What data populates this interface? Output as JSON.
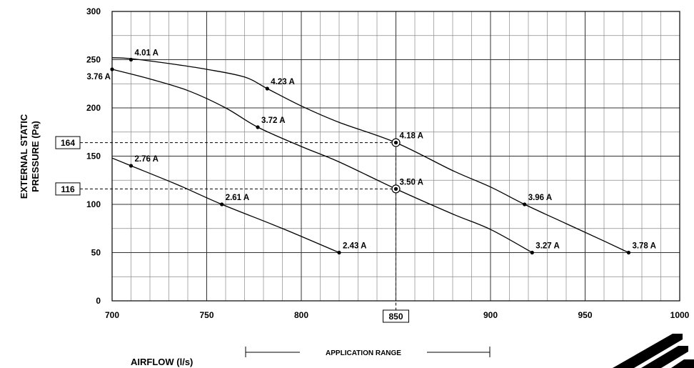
{
  "chart_data": {
    "type": "line",
    "xlabel": "AIRFLOW (l/s)",
    "ylabel_lines": [
      "EXTERNAL STATIC",
      "PRESSURE (Pa)"
    ],
    "xlim": [
      700,
      1000
    ],
    "ylim": [
      0,
      300
    ],
    "x_ticks": [
      700,
      750,
      800,
      850,
      900,
      950,
      1000
    ],
    "y_ticks": [
      0,
      50,
      100,
      150,
      200,
      250,
      300
    ],
    "x_minor_step": 10,
    "y_minor_step": 25,
    "grid": true,
    "series": [
      {
        "curve": [
          [
            700,
            252
          ],
          [
            710,
            251
          ],
          [
            730,
            246
          ],
          [
            750,
            240
          ],
          [
            770,
            232
          ],
          [
            782,
            220
          ],
          [
            800,
            202
          ],
          [
            820,
            185
          ],
          [
            850,
            164
          ],
          [
            880,
            135
          ],
          [
            900,
            118
          ],
          [
            918,
            100
          ],
          [
            940,
            80
          ],
          [
            960,
            62
          ],
          [
            973,
            50
          ]
        ],
        "points": [
          {
            "x": 710,
            "y": 250,
            "label": "4.01 A"
          },
          {
            "x": 782,
            "y": 220,
            "label": "4.23 A"
          },
          {
            "x": 850,
            "y": 164,
            "label": "4.18 A"
          },
          {
            "x": 918,
            "y": 100,
            "label": "3.96 A"
          },
          {
            "x": 973,
            "y": 50,
            "label": "3.78 A"
          }
        ]
      },
      {
        "curve": [
          [
            700,
            240
          ],
          [
            720,
            230
          ],
          [
            740,
            218
          ],
          [
            760,
            200
          ],
          [
            777,
            180
          ],
          [
            800,
            160
          ],
          [
            820,
            144
          ],
          [
            850,
            116
          ],
          [
            880,
            90
          ],
          [
            900,
            74
          ],
          [
            922,
            50
          ]
        ],
        "points": [
          {
            "x": 700,
            "y": 240,
            "label": "3.76 A"
          },
          {
            "x": 777,
            "y": 180,
            "label": "3.72 A"
          },
          {
            "x": 850,
            "y": 116,
            "label": "3.50 A"
          },
          {
            "x": 922,
            "y": 50,
            "label": "3.27 A"
          }
        ]
      },
      {
        "curve": [
          [
            700,
            148
          ],
          [
            710,
            140
          ],
          [
            735,
            120
          ],
          [
            758,
            100
          ],
          [
            790,
            75
          ],
          [
            820,
            50
          ]
        ],
        "points": [
          {
            "x": 710,
            "y": 140,
            "label": "2.76 A"
          },
          {
            "x": 758,
            "y": 100,
            "label": "2.61 A"
          },
          {
            "x": 820,
            "y": 50,
            "label": "2.43 A"
          }
        ]
      }
    ],
    "operating_point": {
      "x": 850,
      "x_label": "850"
    },
    "reference_pressures": [
      {
        "y": 164,
        "label": "164"
      },
      {
        "y": 116,
        "label": "116"
      }
    ],
    "application_range": {
      "from": 770,
      "to": 900,
      "label": "APPLICATION RANGE"
    }
  },
  "colors": {
    "line": "#000000",
    "grid": "#777777",
    "background": "#ffffff"
  },
  "logo": {
    "icon": "manufacturer-logo-icon"
  }
}
